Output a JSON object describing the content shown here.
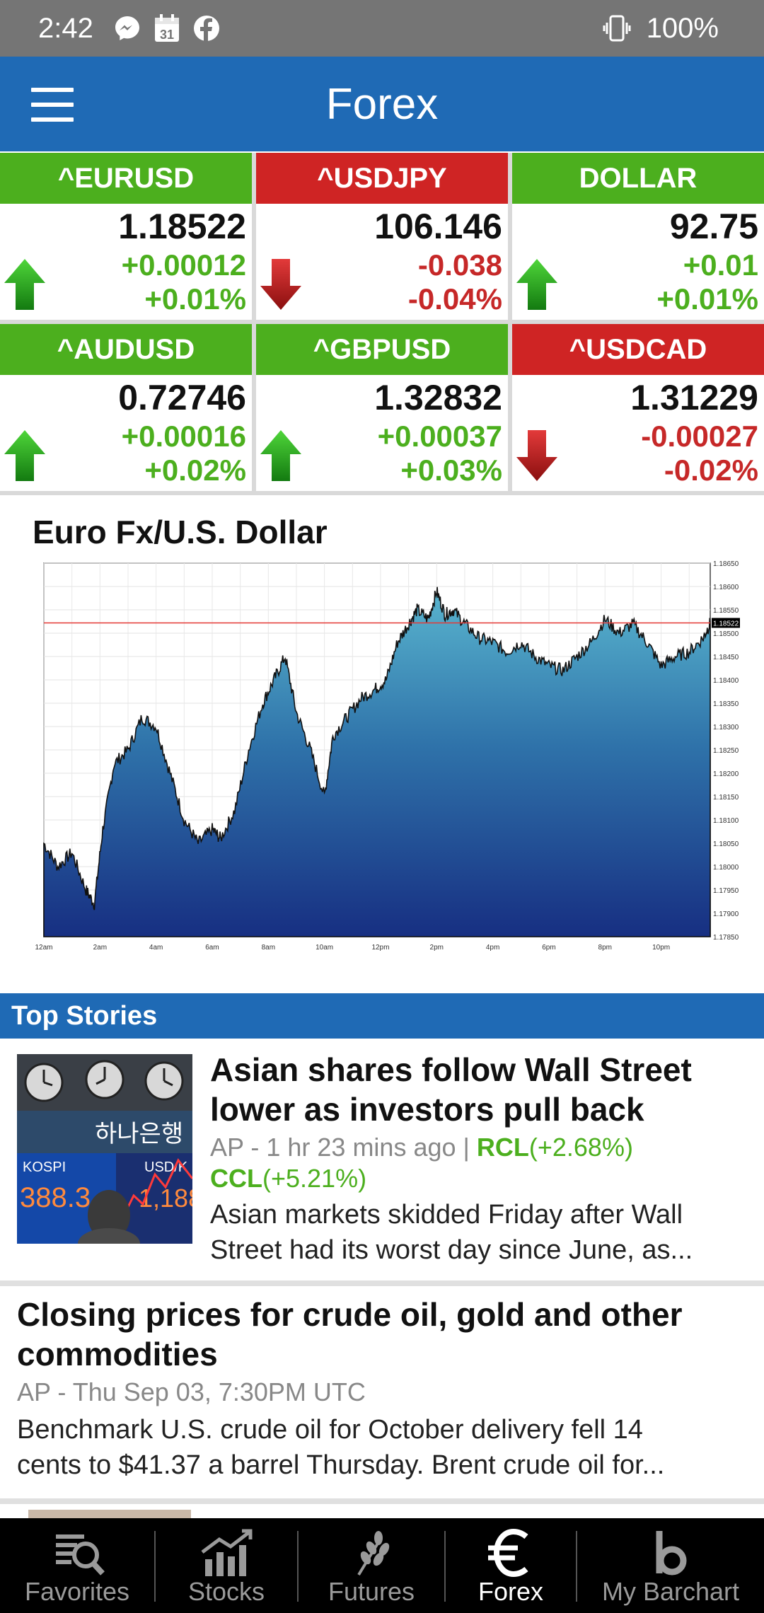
{
  "status_bar": {
    "time": "2:42",
    "calendar_day": "31",
    "battery": "100%"
  },
  "app_bar": {
    "title": "Forex"
  },
  "quotes": [
    {
      "symbol": "^EURUSD",
      "price": "1.18522",
      "change": "+0.00012",
      "percent": "+0.01%",
      "direction": "up"
    },
    {
      "symbol": "^USDJPY",
      "price": "106.146",
      "change": "-0.038",
      "percent": "-0.04%",
      "direction": "down"
    },
    {
      "symbol": "DOLLAR",
      "price": "92.75",
      "change": "+0.01",
      "percent": "+0.01%",
      "direction": "up"
    },
    {
      "symbol": "^AUDUSD",
      "price": "0.72746",
      "change": "+0.00016",
      "percent": "+0.02%",
      "direction": "up"
    },
    {
      "symbol": "^GBPUSD",
      "price": "1.32832",
      "change": "+0.00037",
      "percent": "+0.03%",
      "direction": "up"
    },
    {
      "symbol": "^USDCAD",
      "price": "1.31229",
      "change": "-0.00027",
      "percent": "-0.02%",
      "direction": "down"
    }
  ],
  "chart": {
    "title": "Euro Fx/U.S. Dollar"
  },
  "chart_data": {
    "type": "area",
    "title": "Euro Fx/U.S. Dollar",
    "x_tick_labels": [
      "12am",
      "2am",
      "4am",
      "6am",
      "8am",
      "10am",
      "12pm",
      "2pm",
      "4pm",
      "6pm",
      "8pm",
      "10pm"
    ],
    "y_tick_labels": [
      "1.18650",
      "1.18600",
      "1.18550",
      "1.18500",
      "1.18450",
      "1.18400",
      "1.18350",
      "1.18300",
      "1.18250",
      "1.18200",
      "1.18150",
      "1.18100",
      "1.18050",
      "1.18000",
      "1.17950",
      "1.17900",
      "1.17850"
    ],
    "ylim": [
      1.1785,
      1.1865
    ],
    "xlim": [
      0,
      23.75
    ],
    "last_price": 1.18522,
    "last_price_label": "1.18522",
    "grid": true,
    "x": [
      0,
      0.5,
      1,
      1.5,
      1.8,
      2.1,
      2.5,
      3,
      3.5,
      4,
      4.5,
      5,
      5.5,
      6,
      6.3,
      6.8,
      7.3,
      7.8,
      8.2,
      8.6,
      9,
      9.5,
      10,
      10.3,
      10.8,
      11.3,
      11.8,
      12.2,
      12.6,
      13,
      13.3,
      13.7,
      14,
      14.3,
      14.6,
      15,
      15.5,
      16,
      16.5,
      17,
      17.5,
      18,
      18.5,
      19,
      19.5,
      20,
      20.5,
      21,
      21.5,
      22,
      22.5,
      23,
      23.5,
      23.75
    ],
    "y": [
      1.1805,
      1.18,
      1.1803,
      1.1795,
      1.1792,
      1.1808,
      1.1822,
      1.1825,
      1.1832,
      1.183,
      1.182,
      1.181,
      1.1805,
      1.1808,
      1.1806,
      1.1812,
      1.1825,
      1.1835,
      1.184,
      1.1845,
      1.1833,
      1.1825,
      1.1815,
      1.1828,
      1.1832,
      1.1836,
      1.1838,
      1.184,
      1.1848,
      1.1852,
      1.1855,
      1.1853,
      1.1859,
      1.1854,
      1.1855,
      1.1852,
      1.1849,
      1.1848,
      1.1846,
      1.1848,
      1.1845,
      1.1843,
      1.1842,
      1.1845,
      1.1848,
      1.1853,
      1.185,
      1.1852,
      1.1848,
      1.1843,
      1.1845,
      1.1846,
      1.1849,
      1.18522
    ]
  },
  "top_stories": {
    "header": "Top Stories",
    "stories": [
      {
        "title_line1": "Asian shares follow Wall Street",
        "title_line2": "lower as investors pull back",
        "meta": "AP - 1 hr 23 mins ago | ",
        "ticker1": "RCL",
        "ticker1_change": "(+2.68%)",
        "ticker2": "CCL",
        "ticker2_change": "(+5.21%)",
        "body_line1": "Asian markets skidded Friday after Wall",
        "body_line2": "Street had its worst day since June, as...",
        "thumb_text_kospi": "KOSPI",
        "thumb_text_usd": "USD/K",
        "thumb_text_value": "388.3",
        "thumb_text_value2": "1,188",
        "thumb_text_bank": "하나은행"
      },
      {
        "title_line1": "Closing prices for crude oil, gold and other",
        "title_line2": "commodities",
        "meta": "AP - Thu Sep 03, 7:30PM UTC",
        "body_line1": "Benchmark U.S. crude oil for October delivery fell 14",
        "body_line2": "cents to $41.37 a barrel Thursday. Brent crude oil for..."
      }
    ]
  },
  "bottom_nav": [
    {
      "label": "Favorites",
      "icon": "favorites-icon",
      "active": false
    },
    {
      "label": "Stocks",
      "icon": "stocks-icon",
      "active": false
    },
    {
      "label": "Futures",
      "icon": "futures-icon",
      "active": false
    },
    {
      "label": "Forex",
      "icon": "euro-icon",
      "active": true
    },
    {
      "label": "My Barchart",
      "icon": "barchart-logo-icon",
      "active": false
    }
  ],
  "colors": {
    "app_bar": "#1f6ab5",
    "up": "#4caf1e",
    "down": "#cf2424",
    "nav_bg": "#000000"
  }
}
